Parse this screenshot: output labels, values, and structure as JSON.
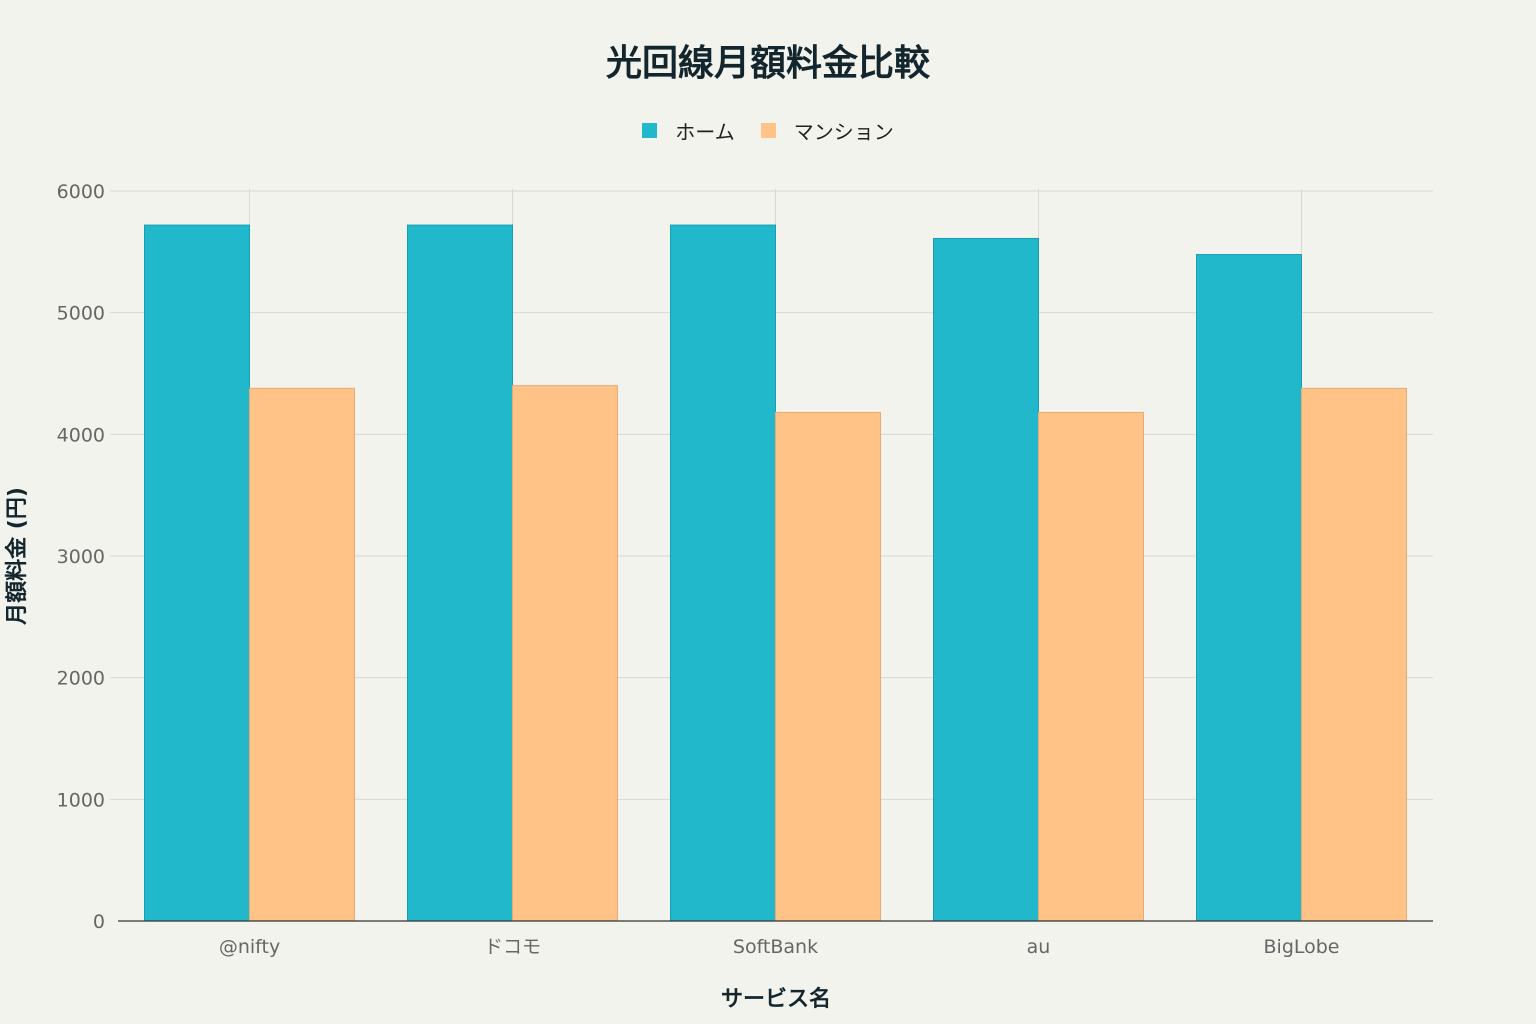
{
  "chart_data": {
    "type": "bar",
    "title": "光回線月額料金比較",
    "xlabel": "サービス名",
    "ylabel": "月額料金 (円)",
    "categories": [
      "@nifty",
      "ドコモ",
      "SoftBank",
      "au",
      "BigLobe"
    ],
    "series": [
      {
        "name": "ホーム",
        "color": "#21b8cc",
        "values": [
          5720,
          5720,
          5720,
          5610,
          5478
        ]
      },
      {
        "name": "マンション",
        "color": "#ffc287",
        "values": [
          4378,
          4400,
          4180,
          4180,
          4378
        ]
      }
    ],
    "ylim": [
      0,
      6000
    ],
    "yticks": [
      0,
      1000,
      2000,
      3000,
      4000,
      5000,
      6000
    ],
    "grid": true,
    "legend_position": "top-center"
  }
}
